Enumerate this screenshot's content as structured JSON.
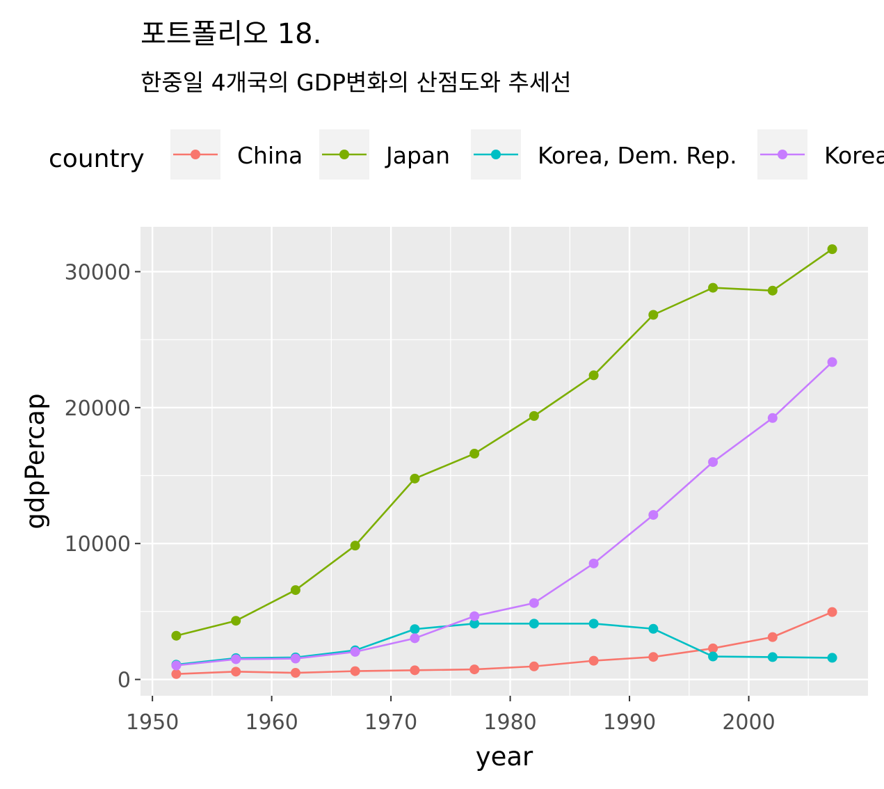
{
  "chart_data": {
    "type": "line",
    "title": "포트폴리오 18.",
    "subtitle": "한중일 4개국의 GDP변화의 산점도와 추세선",
    "xlabel": "year",
    "ylabel": "gdpPercap",
    "xlim": [
      1949,
      2010
    ],
    "ylim": [
      -1200,
      33300
    ],
    "x_ticks": [
      1950,
      1960,
      1970,
      1980,
      1990,
      2000
    ],
    "x_tick_labels": [
      "1950",
      "1960",
      "1970",
      "1980",
      "1990",
      "2000"
    ],
    "y_ticks": [
      0,
      10000,
      20000,
      30000
    ],
    "y_tick_labels": [
      "0",
      "10000",
      "20000",
      "30000"
    ],
    "grid": true,
    "legend": {
      "title": "country",
      "position": "top"
    },
    "x": [
      1952,
      1957,
      1962,
      1967,
      1972,
      1977,
      1982,
      1987,
      1992,
      1997,
      2002,
      2007
    ],
    "series": [
      {
        "name": "China",
        "color": "#F8766D",
        "values": [
          400,
          575,
          488,
          613,
          677,
          741,
          962,
          1379,
          1656,
          2289,
          3119,
          4959
        ]
      },
      {
        "name": "Japan",
        "color": "#7CAE00",
        "values": [
          3217,
          4318,
          6577,
          9848,
          14779,
          16610,
          19384,
          22376,
          26825,
          28817,
          28605,
          31656
        ]
      },
      {
        "name": "Korea, Dem. Rep.",
        "color": "#00BFC4",
        "values": [
          1088,
          1571,
          1622,
          2144,
          3702,
          4106,
          4107,
          4106,
          3726,
          1691,
          1646,
          1593
        ]
      },
      {
        "name": "Korea, Rep.",
        "color": "#C77CFF",
        "values": [
          1031,
          1488,
          1536,
          2029,
          3031,
          4657,
          5623,
          8533,
          12104,
          15994,
          19234,
          23348
        ]
      }
    ]
  }
}
